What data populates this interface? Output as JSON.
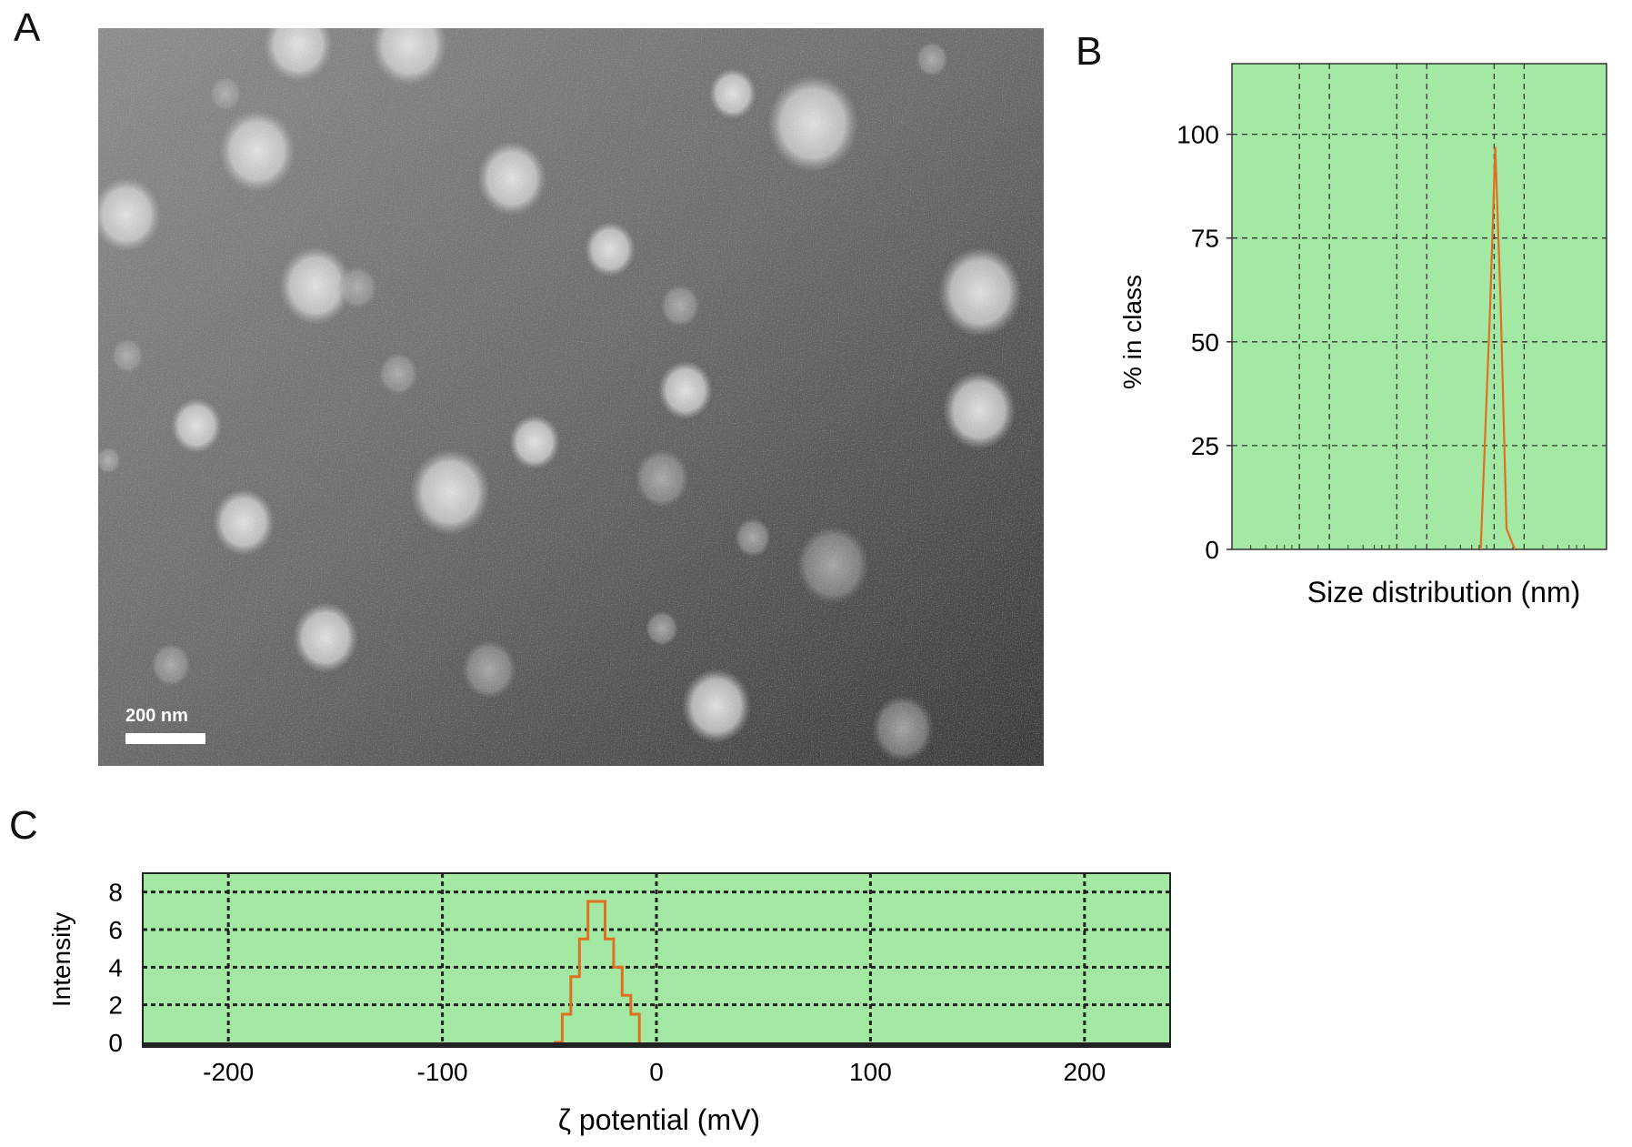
{
  "panels": {
    "a_label": "A",
    "b_label": "B",
    "c_label": "C"
  },
  "micrograph": {
    "scale_bar_label": "200 nm"
  },
  "chart_data": [
    {
      "id": "B",
      "type": "line",
      "xlabel": "Size distribution (nm)",
      "ylabel": "% in class",
      "ylim": [
        0,
        117
      ],
      "yticks": [
        0,
        25,
        50,
        75,
        100
      ],
      "x_scale": "log",
      "x_tick_labels": [],
      "grid": true,
      "background_color": "#9fe89f",
      "line_color": "#e07020",
      "series": [
        {
          "points": [
            [
              0.664,
              0
            ],
            [
              0.689,
              58
            ],
            [
              0.703,
              97
            ],
            [
              0.717,
              60
            ],
            [
              0.733,
              5
            ],
            [
              0.755,
              0
            ]
          ]
        }
      ]
    },
    {
      "id": "C",
      "type": "line",
      "xlabel": "ζ potential (mV)",
      "ylabel": "Intensity",
      "xlim": [
        -240,
        240
      ],
      "xticks": [
        -200,
        -100,
        0,
        100,
        200
      ],
      "ylim": [
        0,
        9
      ],
      "yticks": [
        0,
        2,
        4,
        6,
        8
      ],
      "grid": true,
      "background_color": "#9fe89f",
      "line_color": "#e07020",
      "series": [
        {
          "points": [
            [
              -48,
              0
            ],
            [
              -44,
              1.5
            ],
            [
              -40,
              3.5
            ],
            [
              -36,
              5.5
            ],
            [
              -32,
              7.5
            ],
            [
              -28,
              7.5
            ],
            [
              -24,
              5.5
            ],
            [
              -20,
              4
            ],
            [
              -16,
              2.5
            ],
            [
              -12,
              1.5
            ],
            [
              -8,
              0
            ]
          ]
        }
      ]
    }
  ]
}
